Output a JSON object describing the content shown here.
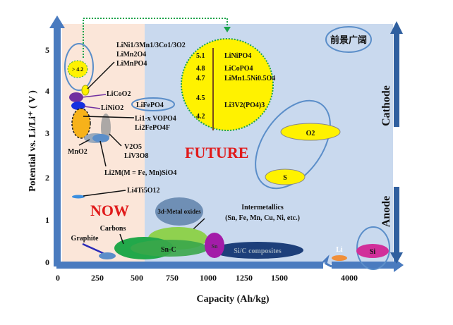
{
  "axes": {
    "xlabel": "Capacity (Ah/kg)",
    "ylabel": "Potential vs. Li/Li⁺ ( V )",
    "xticks": [
      "0",
      "250",
      "500",
      "750",
      "1000",
      "1250",
      "1500",
      "4000"
    ],
    "yticks": [
      "0",
      "1",
      "2",
      "3",
      "4",
      "5"
    ],
    "cathode_label": "Cathode",
    "anode_label": "Anode"
  },
  "regions": {
    "now": "NOW",
    "future": "FUTURE",
    "outlook": "前景广阔"
  },
  "cathode_materials": {
    "high_v_badge": "> 4.2",
    "nmc": "LiNi1/3Mn1/3Co1/3O2",
    "limn2o4": "LiMn2O4",
    "limnpo4": "LiMnPO4",
    "licoo2": "LiCoO2",
    "linio2": "LiNiO2",
    "lifepo4": "LiFePO4",
    "vopo4": "Li1-x VOPO4",
    "li2fepo4f": "Li2FePO4F",
    "mno2": "MnO2",
    "v2o5": "V2O5",
    "liv3o8": "LiV3O8",
    "silicate": "Li2M(M = Fe, Mn)SiO4",
    "lto": "Li4Ti5O12"
  },
  "future_materials": {
    "voltages": [
      "5.1",
      "4.8",
      "4.7",
      "4.5",
      "4.2"
    ],
    "linipo4": "LiNiPO4",
    "licopo4": "LiCoPO4",
    "lmno": "LiMn1.5Ni0.5O4",
    "lvp": "Li3V2(PO4)3",
    "o2": "O2",
    "s": "S"
  },
  "anode_materials": {
    "metal_oxides": "3d-Metal oxides",
    "intermetallics": "Intermetallics",
    "intermetallics_sub": "(Sn, Fe, Mn, Cu, Ni, etc.)",
    "carbons": "Carbons",
    "graphite": "Graphite",
    "snc": "Sn-C",
    "sn": "Sn",
    "sic": "Si/C composites",
    "li": "Li",
    "si": "Si"
  },
  "colors": {
    "now_bg": "#fbe6d9",
    "future_bg": "#c9d9ee",
    "axis": "#4a7bbf",
    "highlight": "#fff200",
    "red": "#e01b1b"
  }
}
